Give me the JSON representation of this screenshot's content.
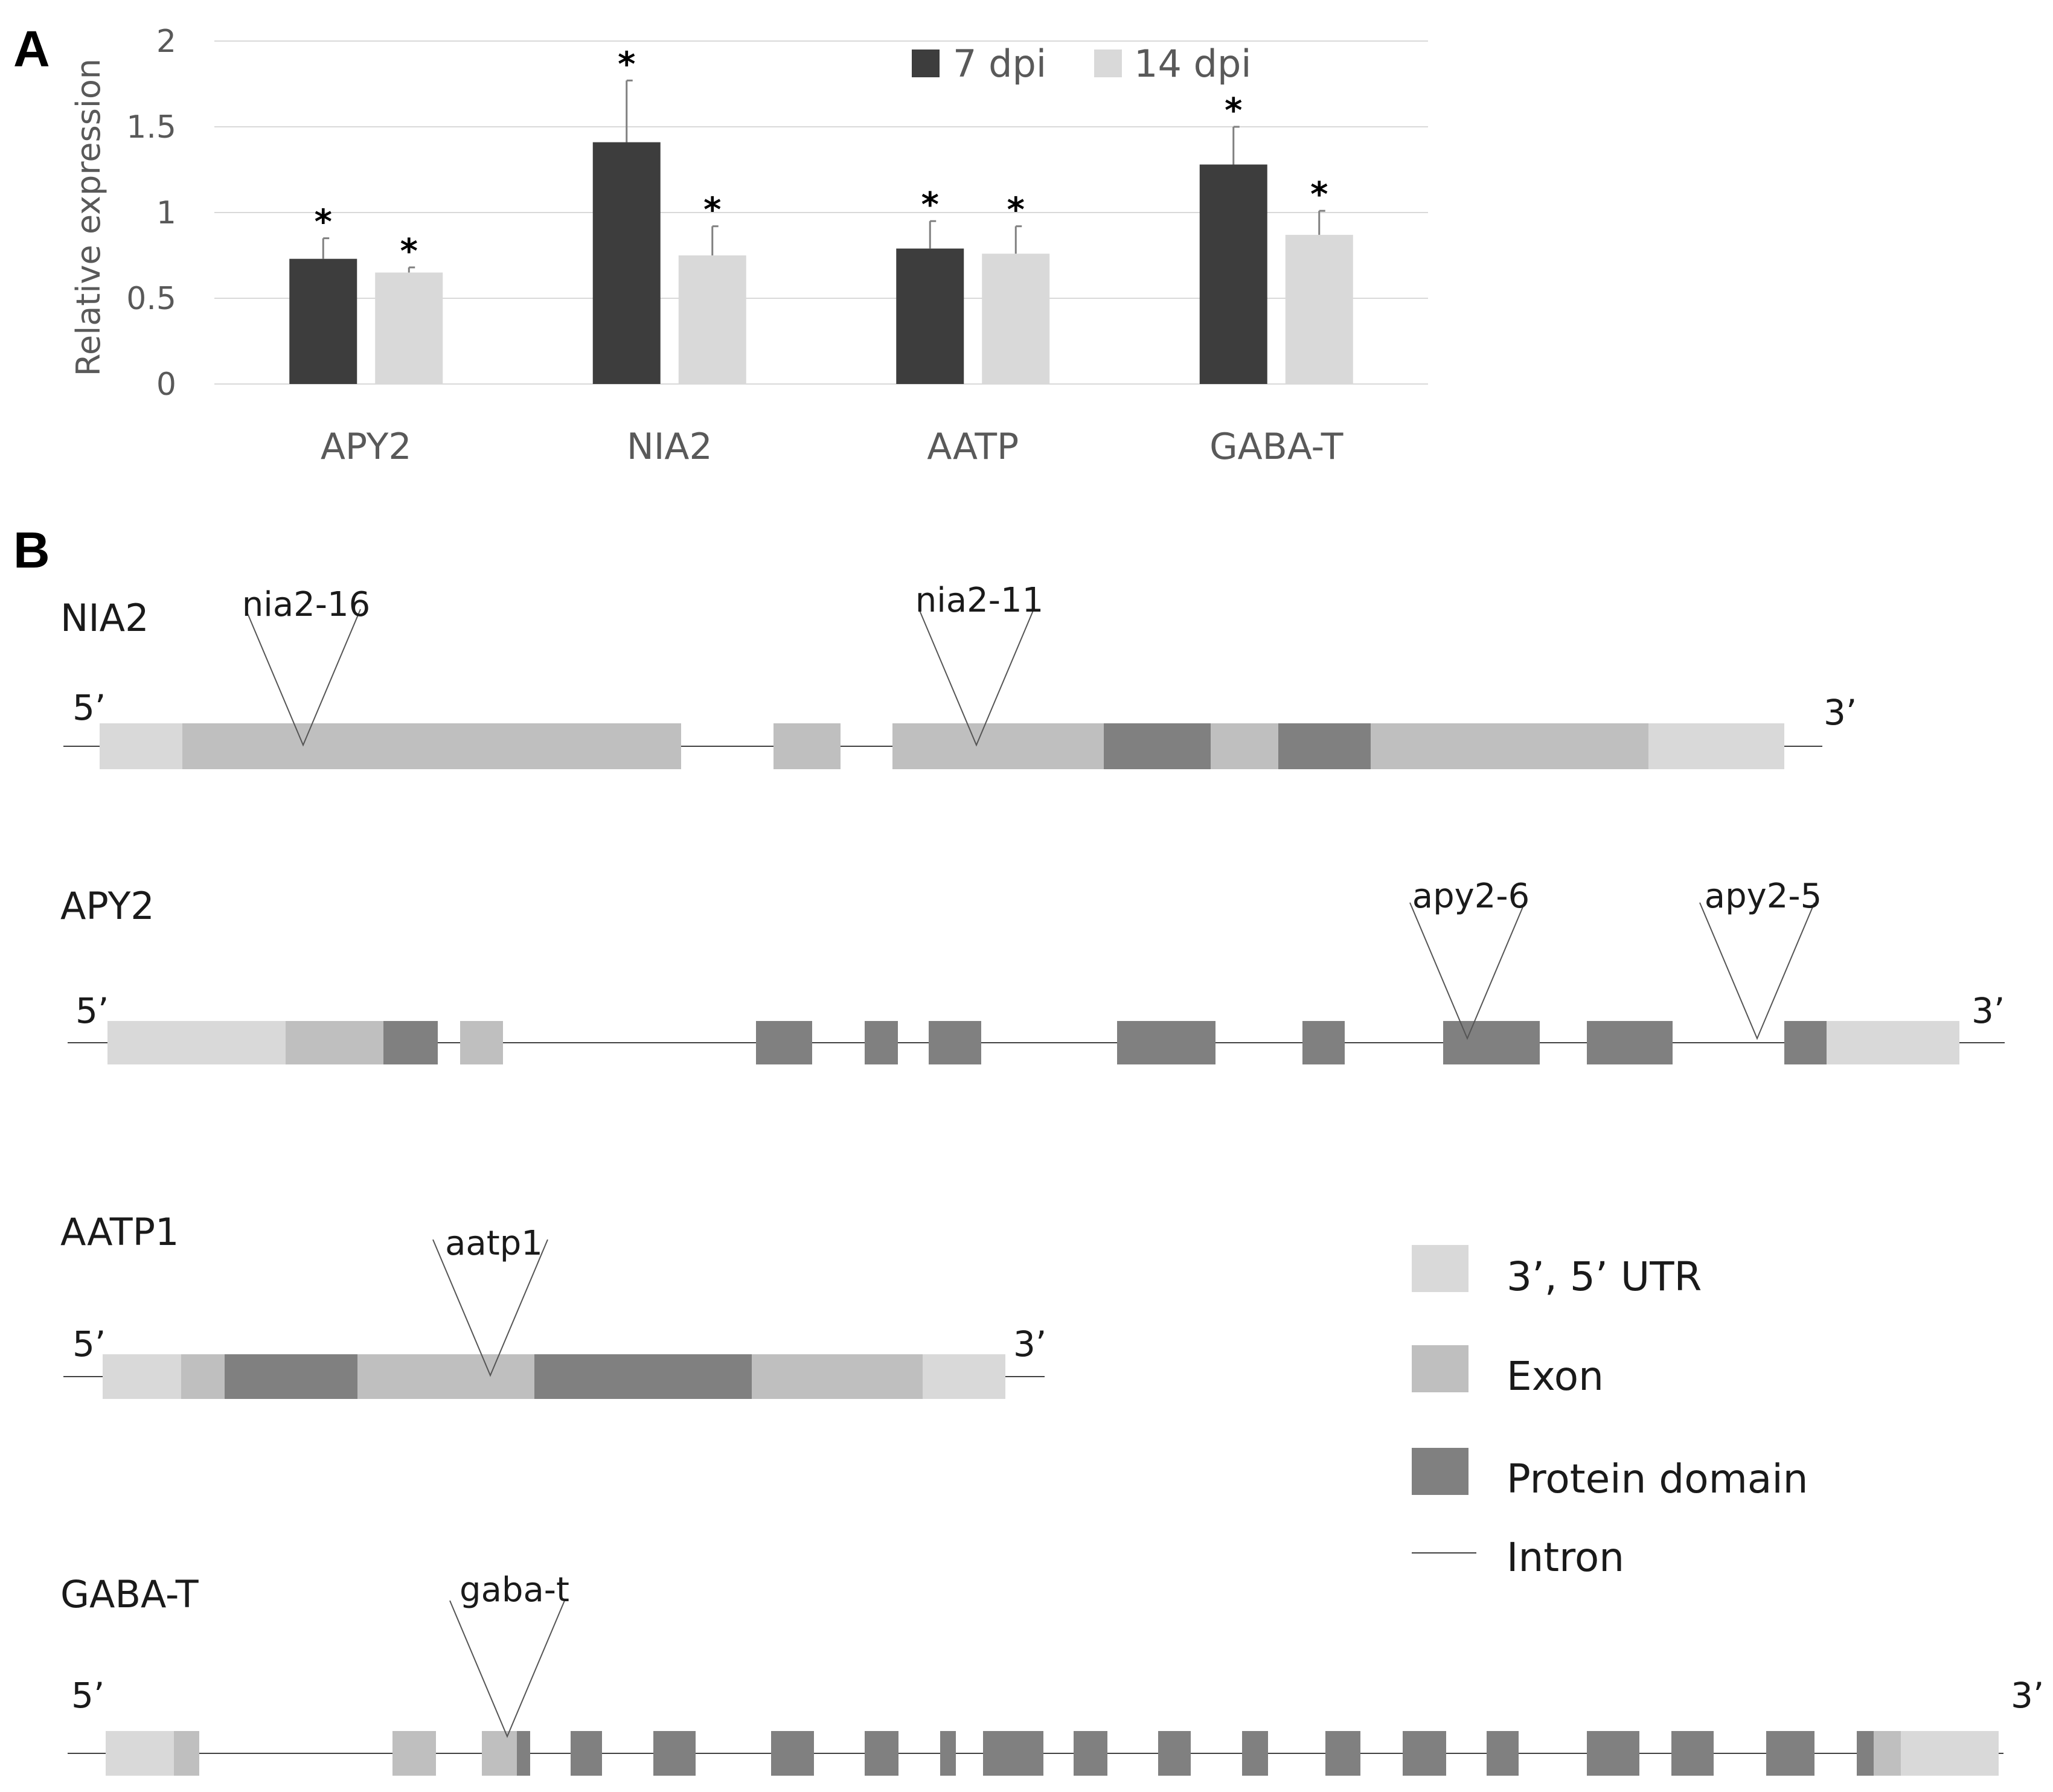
{
  "panel_a_letter": "A",
  "panel_b_letter": "B",
  "chart_data": {
    "type": "bar",
    "title": "",
    "xlabel": "",
    "ylabel": "Relative expression",
    "ylim": [
      0,
      2
    ],
    "yticks": [
      "0",
      "0.5",
      "1",
      "1.5",
      "2"
    ],
    "grid": true,
    "legend_position": "top-right",
    "categories": [
      "APY2",
      "NIA2",
      "AATP",
      "GABA-T"
    ],
    "series": [
      {
        "name": "7 dpi",
        "color": "#3d3d3d",
        "values": [
          0.73,
          1.41,
          0.79,
          1.28
        ],
        "errors": [
          0.12,
          0.36,
          0.16,
          0.22
        ],
        "annotations": [
          "*",
          "*",
          "*",
          "*"
        ]
      },
      {
        "name": "14 dpi",
        "color": "#d9d9d9",
        "values": [
          0.65,
          0.75,
          0.76,
          0.87
        ],
        "errors": [
          0.03,
          0.17,
          0.16,
          0.14
        ],
        "annotations": [
          "*",
          "*",
          "*",
          "*"
        ]
      }
    ]
  },
  "gene_diagram": {
    "colors": {
      "utr": "#d9d9d9",
      "exon": "#bfbfbf",
      "domain": "#808080",
      "intron": "#404040"
    },
    "genes": [
      {
        "name": "NIA2",
        "five_prime": "5’",
        "three_prime": "3’",
        "insertions": [
          "nia2-16",
          "nia2-11"
        ]
      },
      {
        "name": "APY2",
        "five_prime": "5’",
        "three_prime": "3’",
        "insertions": [
          "apy2-6",
          "apy2-5"
        ]
      },
      {
        "name": "AATP1",
        "five_prime": "5’",
        "three_prime": "3’",
        "insertions": [
          "aatp1"
        ]
      },
      {
        "name": "GABA-T",
        "five_prime": "5’",
        "three_prime": "3’",
        "insertions": [
          "gaba-t"
        ]
      }
    ],
    "legend": {
      "utr": "3’, 5’ UTR",
      "exon": "Exon",
      "domain": "Protein domain",
      "intron": "Intron"
    }
  }
}
